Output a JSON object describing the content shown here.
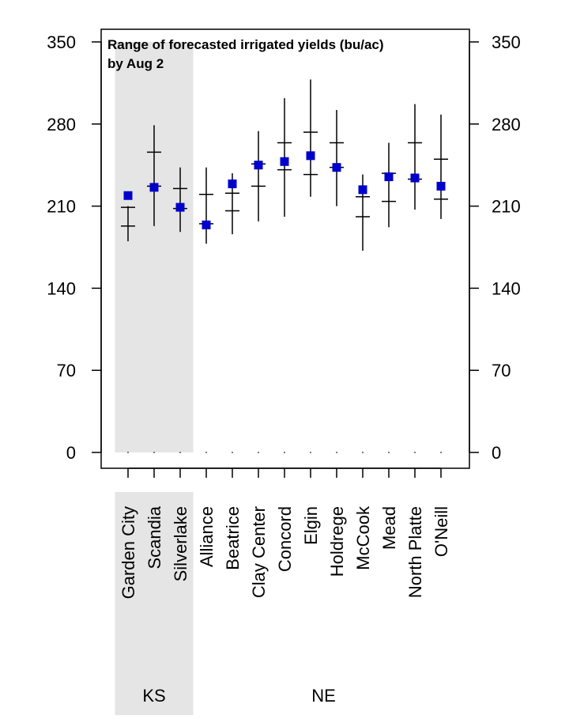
{
  "chart_data": {
    "type": "scatter",
    "title_lines": [
      "Range of forecasted irrigated yields (bu/ac)",
      "by Aug 2"
    ],
    "ylim": [
      0,
      350
    ],
    "yticks": [
      0,
      70,
      140,
      210,
      280,
      350
    ],
    "y_axis_both_sides": true,
    "grid": false,
    "categories": [
      "Garden City",
      "Scandia",
      "Silverlake",
      "Alliance",
      "Beatrice",
      "Clay Center",
      "Concord",
      "Elgin",
      "Holdrege",
      "McCook",
      "Mead",
      "North Platte",
      "O'Neill"
    ],
    "groups": [
      {
        "label": "KS",
        "start": 0,
        "end": 2,
        "shaded": true
      },
      {
        "label": "NE",
        "start": 3,
        "end": 12,
        "shaded": false
      }
    ],
    "series": [
      {
        "marker": "square",
        "color": "#0000cc",
        "values": [
          219,
          226,
          209,
          194,
          229,
          245,
          248,
          253,
          243,
          224,
          235,
          234,
          227
        ]
      }
    ],
    "ranges": [
      {
        "min": 180,
        "max": 210,
        "ticks": [
          193,
          209
        ]
      },
      {
        "min": 193,
        "max": 279,
        "ticks": [
          227,
          256
        ]
      },
      {
        "min": 188,
        "max": 243,
        "ticks": [
          208,
          225
        ]
      },
      {
        "min": 178,
        "max": 243,
        "ticks": [
          195,
          220
        ]
      },
      {
        "min": 186,
        "max": 238,
        "ticks": [
          206,
          221
        ]
      },
      {
        "min": 197,
        "max": 274,
        "ticks": [
          227,
          246
        ]
      },
      {
        "min": 201,
        "max": 302,
        "ticks": [
          241,
          264
        ]
      },
      {
        "min": 218,
        "max": 318,
        "ticks": [
          237,
          273
        ]
      },
      {
        "min": 210,
        "max": 292,
        "ticks": [
          243,
          264
        ]
      },
      {
        "min": 172,
        "max": 237,
        "ticks": [
          201,
          218
        ]
      },
      {
        "min": 192,
        "max": 264,
        "ticks": [
          214,
          238
        ]
      },
      {
        "min": 207,
        "max": 297,
        "ticks": [
          233,
          264
        ]
      },
      {
        "min": 199,
        "max": 288,
        "ticks": [
          216,
          250
        ]
      }
    ]
  }
}
